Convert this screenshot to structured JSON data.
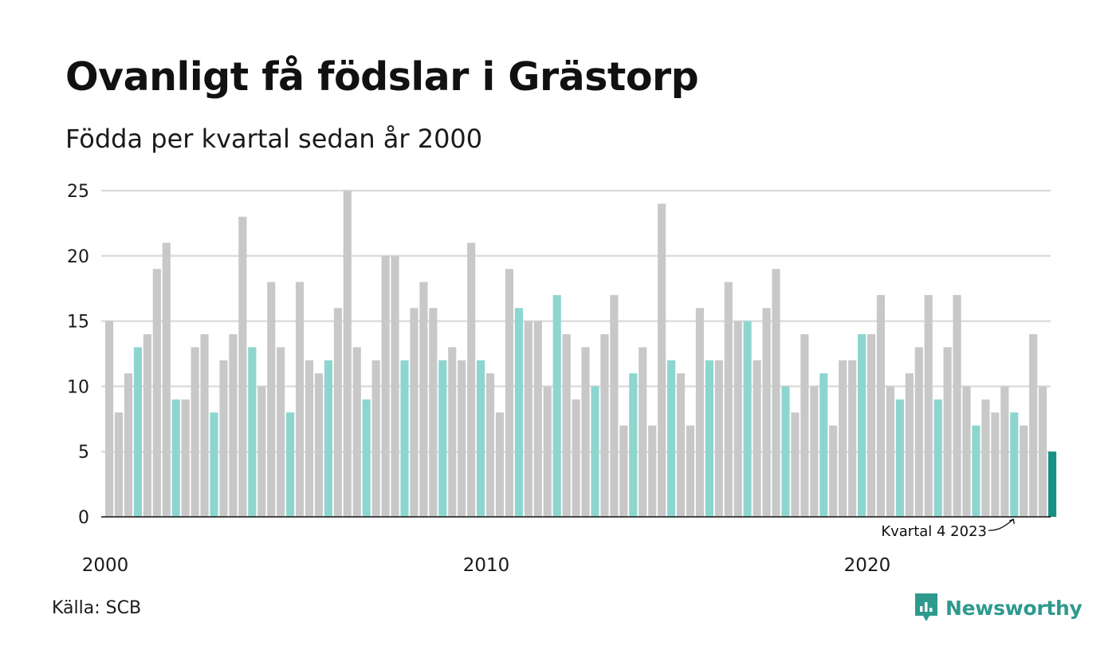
{
  "header": {
    "title": "Ovanligt få födslar i Grästorp",
    "subtitle": "Födda per kvartal sedan år 2000"
  },
  "footer": {
    "source": "Källa: SCB",
    "brand": "Newsworthy"
  },
  "colors": {
    "regular_bar": "#c8c8c8",
    "same_quarter_bar": "#8dd6cf",
    "highlight_bar": "#1a8f84",
    "gridline": "#dddddd",
    "axis": "#111111",
    "brand": "#2e9a8e"
  },
  "chart_data": {
    "type": "bar",
    "title": "Ovanligt få födslar i Grästorp",
    "subtitle": "Födda per kvartal sedan år 2000",
    "ylim": [
      0,
      25
    ],
    "y_ticks": [
      0,
      5,
      10,
      15,
      20,
      25
    ],
    "x_tick_labels": [
      {
        "label": "2000",
        "year": 2000
      },
      {
        "label": "2010",
        "year": 2010
      },
      {
        "label": "2020",
        "year": 2020
      }
    ],
    "start": {
      "year": 2000,
      "quarter": 1
    },
    "grid": true,
    "values": [
      15,
      8,
      11,
      13,
      14,
      19,
      21,
      9,
      9,
      13,
      14,
      8,
      12,
      14,
      23,
      13,
      10,
      18,
      13,
      8,
      18,
      12,
      11,
      12,
      16,
      25,
      13,
      9,
      12,
      20,
      20,
      12,
      16,
      18,
      16,
      12,
      13,
      12,
      21,
      12,
      11,
      8,
      19,
      16,
      15,
      15,
      10,
      17,
      14,
      9,
      13,
      10,
      14,
      17,
      7,
      11,
      13,
      7,
      24,
      12,
      11,
      7,
      16,
      12,
      12,
      18,
      15,
      15,
      12,
      16,
      19,
      10,
      8,
      14,
      10,
      11,
      7,
      12,
      12,
      14,
      14,
      17,
      10,
      9,
      11,
      13,
      17,
      9,
      13,
      17,
      10,
      7,
      9,
      8,
      10,
      8,
      7,
      14,
      10,
      5
    ],
    "highlight_quarter": 4,
    "annotation": "Kvartal 4 2023"
  }
}
